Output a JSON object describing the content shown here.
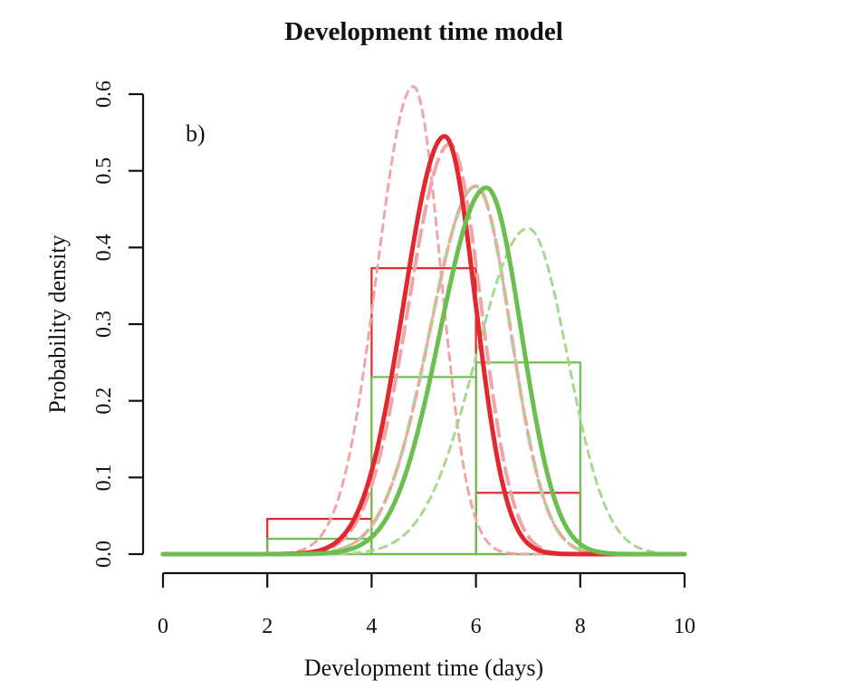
{
  "chart_data": {
    "type": "line",
    "title": "Development time model",
    "xlabel": "Development time (days)",
    "ylabel": "Probability density",
    "panel_label": "b)",
    "xlim": [
      0,
      10
    ],
    "ylim": [
      0,
      0.6
    ],
    "x_ticks": [
      0,
      2,
      4,
      6,
      8,
      10
    ],
    "y_ticks": [
      0.0,
      0.1,
      0.2,
      0.3,
      0.4,
      0.5,
      0.6
    ],
    "x_tick_labels": [
      "0",
      "2",
      "4",
      "6",
      "8",
      "10"
    ],
    "y_tick_labels": [
      "0.0",
      "0.1",
      "0.2",
      "0.3",
      "0.4",
      "0.5",
      "0.6"
    ],
    "grid": false,
    "colors": {
      "red": "#e0282e",
      "green": "#6cbf4e",
      "red_light": "#f2a4a6",
      "green_light": "#a6d88e"
    },
    "histograms": [
      {
        "color": "red",
        "bins": [
          {
            "x0": 2,
            "x1": 4,
            "y": 0.046
          },
          {
            "x0": 4,
            "x1": 6,
            "y": 0.373
          },
          {
            "x0": 6,
            "x1": 8,
            "y": 0.08
          }
        ]
      },
      {
        "color": "green",
        "bins": [
          {
            "x0": 2,
            "x1": 4,
            "y": 0.02
          },
          {
            "x0": 4,
            "x1": 6,
            "y": 0.231
          },
          {
            "x0": 6,
            "x1": 8,
            "y": 0.25
          }
        ]
      }
    ],
    "series": [
      {
        "color": "red",
        "style": "solid",
        "width": 5,
        "peak_x": 5.4,
        "peak_y": 0.545
      },
      {
        "color": "green",
        "style": "solid",
        "width": 5,
        "peak_x": 6.2,
        "peak_y": 0.478
      },
      {
        "color": "red_light",
        "style": "dashed",
        "width": 3,
        "peak_x": 4.8,
        "peak_y": 0.61
      },
      {
        "color": "red_light",
        "style": "longdash",
        "width": 4,
        "peak_x": 5.5,
        "peak_y": 0.535
      },
      {
        "color": "green_light",
        "style": "longdash",
        "width": 4,
        "peak_x": 6.0,
        "peak_y": 0.48
      },
      {
        "color": "red_light",
        "style": "dashed",
        "width": 3,
        "peak_x": 6.0,
        "peak_y": 0.48
      },
      {
        "color": "green_light",
        "style": "dashed",
        "width": 3,
        "peak_x": 7.0,
        "peak_y": 0.425
      }
    ]
  }
}
